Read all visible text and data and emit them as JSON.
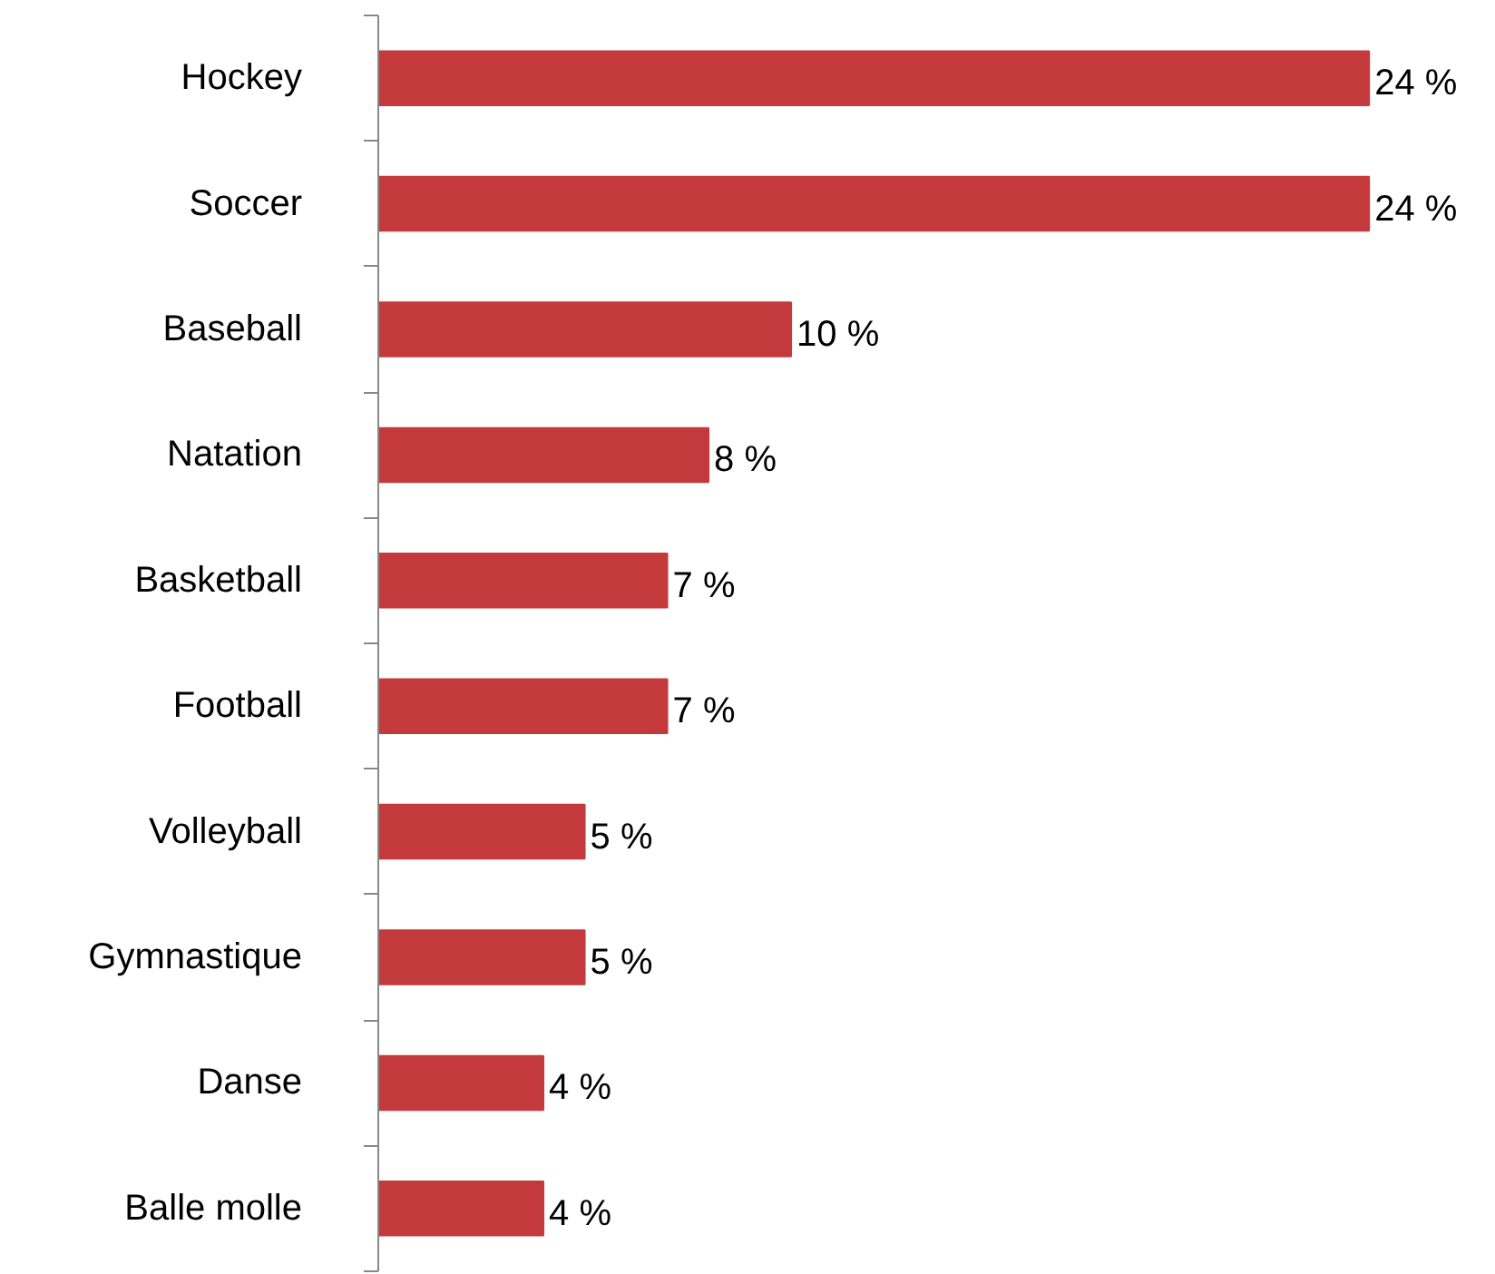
{
  "chart_data": {
    "type": "bar",
    "orientation": "horizontal",
    "categories": [
      "Hockey",
      "Soccer",
      "Baseball",
      "Natation",
      "Basketball",
      "Football",
      "Volleyball",
      "Gymnastique",
      "Danse",
      "Balle molle"
    ],
    "values": [
      24,
      24,
      10,
      8,
      7,
      7,
      5,
      5,
      4,
      4
    ],
    "value_labels": [
      "24 %",
      "24 %",
      "10 %",
      "8 %",
      "7 %",
      "7 %",
      "5 %",
      "5 %",
      "4 %",
      "4 %"
    ],
    "color": "#c43a3c",
    "grid": false,
    "tick_labels": "y"
  }
}
